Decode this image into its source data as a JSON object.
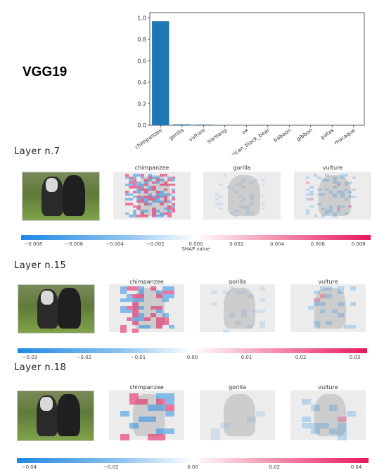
{
  "model_title": "VGG19",
  "chart_data": {
    "type": "bar",
    "categories": [
      "chimpanzee",
      "gorilla",
      "vulture",
      "siamang",
      "ox",
      "American_black_bear",
      "baboon",
      "gibbon",
      "patas",
      "macaque"
    ],
    "values": [
      0.97,
      0.008,
      0.006,
      0.002,
      0.002,
      0.002,
      0.001,
      0.001,
      0.001,
      0.001
    ],
    "ylim": [
      0,
      1.05
    ],
    "yticks": [
      "0.0",
      "0.2",
      "0.4",
      "0.6",
      "0.8",
      "1.0"
    ],
    "grid": false,
    "color": "#1f77b4"
  },
  "layers": [
    {
      "title": "Layer n.7",
      "panels": [
        "chimpanzee",
        "gorilla",
        "vulture"
      ],
      "colorbar_ticks": [
        "−0.008",
        "−0.006",
        "−0.004",
        "−0.002",
        "0.000",
        "0.002",
        "0.004",
        "0.006",
        "0.008"
      ],
      "colorbar_label": "SHAP value"
    },
    {
      "title": "Layer n.15",
      "panels": [
        "chimpanzee",
        "gorilla",
        "vulture"
      ],
      "colorbar_ticks": [
        "−0.03",
        "−0.02",
        "−0.01",
        "0.00",
        "0.01",
        "0.02",
        "0.03"
      ]
    },
    {
      "title": "Layer n.18",
      "panels": [
        "chimpanzee",
        "gorilla",
        "vulture"
      ],
      "colorbar_ticks": [
        "−0.04",
        "−0.02",
        "0.00",
        "0.02",
        "0.04"
      ]
    }
  ],
  "colors": {
    "bar": "#1f77b4",
    "negative": "#1e88e5",
    "positive": "#e8175d"
  }
}
